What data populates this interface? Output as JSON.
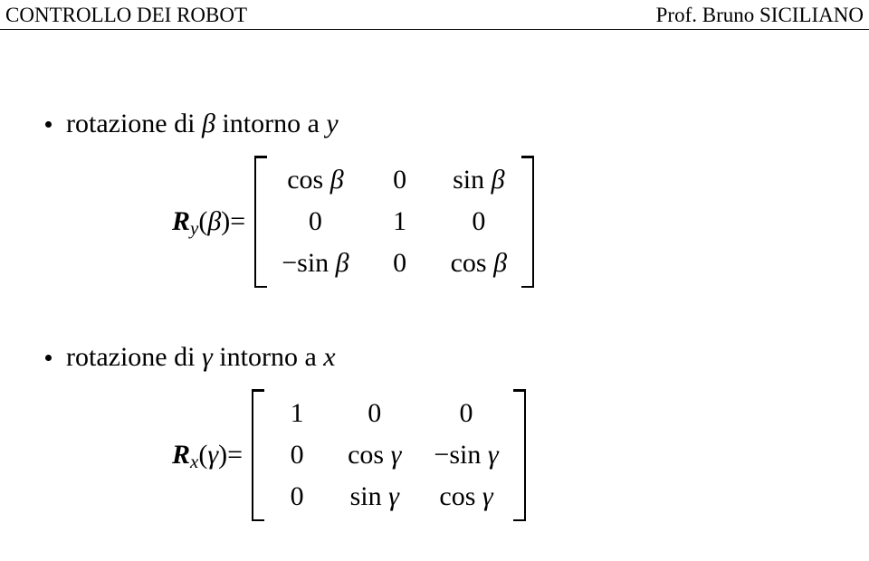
{
  "header": {
    "left": "CONTROLLO DEI ROBOT",
    "right_prefix": "Prof. ",
    "right_name": "Bruno SICILIANO"
  },
  "section1": {
    "bullet_prefix": "rotazione di ",
    "bullet_var": "β",
    "bullet_mid": " intorno a ",
    "bullet_axis": "y",
    "lhs_R": "R",
    "lhs_sub": "y",
    "lhs_arg": "β",
    "eq": " = ",
    "m": {
      "r0c0_a": "cos ",
      "r0c0_b": "β",
      "r0c1": "0",
      "r0c2_a": "sin ",
      "r0c2_b": "β",
      "r1c0": "0",
      "r1c1": "1",
      "r1c2": "0",
      "r2c0_a": "−sin ",
      "r2c0_b": "β",
      "r2c1": "0",
      "r2c2_a": "cos ",
      "r2c2_b": "β"
    }
  },
  "section2": {
    "bullet_prefix": "rotazione di ",
    "bullet_var": "γ",
    "bullet_mid": " intorno a ",
    "bullet_axis": "x",
    "lhs_R": "R",
    "lhs_sub": "x",
    "lhs_arg": "γ",
    "eq": " = ",
    "m": {
      "r0c0": "1",
      "r0c1": "0",
      "r0c2": "0",
      "r1c0": "0",
      "r1c1_a": "cos ",
      "r1c1_b": "γ",
      "r1c2_a": "−sin ",
      "r1c2_b": "γ",
      "r2c0": "0",
      "r2c1_a": "sin ",
      "r2c1_b": "γ",
      "r2c2_a": "cos ",
      "r2c2_b": "γ"
    }
  }
}
